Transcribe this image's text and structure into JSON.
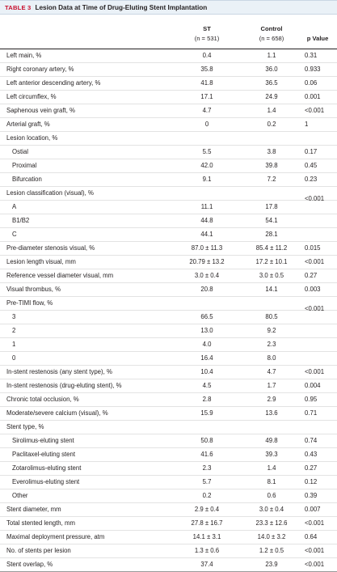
{
  "table": {
    "label": "TABLE 3",
    "title": "Lesion Data at Time of Drug-Eluting Stent Implantation",
    "columns": {
      "st_name": "ST",
      "st_n": "(n = 531)",
      "control_name": "Control",
      "control_n": "(n = 658)",
      "p_name": "p Value"
    },
    "rows": [
      {
        "label": "Left main, %",
        "st": "0.4",
        "control": "1.1",
        "p": "0.31",
        "sub": false
      },
      {
        "label": "Right coronary artery, %",
        "st": "35.8",
        "control": "36.0",
        "p": "0.933",
        "sub": false
      },
      {
        "label": "Left anterior descending artery, %",
        "st": "41.8",
        "control": "36.5",
        "p": "0.06",
        "sub": false
      },
      {
        "label": "Left circumflex, %",
        "st": "17.1",
        "control": "24.9",
        "p": "0.001",
        "sub": false
      },
      {
        "label": "Saphenous vein graft, %",
        "st": "4.7",
        "control": "1.4",
        "p": "<0.001",
        "sub": false
      },
      {
        "label": "Arterial graft, %",
        "st": "0",
        "control": "0.2",
        "p": "1",
        "sub": false
      },
      {
        "label": "Lesion location, %",
        "st": "",
        "control": "",
        "p": "",
        "sub": false
      },
      {
        "label": "Ostial",
        "st": "5.5",
        "control": "3.8",
        "p": "0.17",
        "sub": true
      },
      {
        "label": "Proximal",
        "st": "42.0",
        "control": "39.8",
        "p": "0.45",
        "sub": true
      },
      {
        "label": "Bifurcation",
        "st": "9.1",
        "control": "7.2",
        "p": "0.23",
        "sub": true
      },
      {
        "label": "Lesion classification (visual), %",
        "st": "",
        "control": "",
        "p": "<0.001",
        "sub": false,
        "pshift": true
      },
      {
        "label": "A",
        "st": "11.1",
        "control": "17.8",
        "p": "",
        "sub": true
      },
      {
        "label": "B1/B2",
        "st": "44.8",
        "control": "54.1",
        "p": "",
        "sub": true
      },
      {
        "label": "C",
        "st": "44.1",
        "control": "28.1",
        "p": "",
        "sub": true
      },
      {
        "label": "Pre-diameter stenosis visual, %",
        "st": "87.0 ± 11.3",
        "control": "85.4 ± 11.2",
        "p": "0.015",
        "sub": false
      },
      {
        "label": "Lesion length visual, mm",
        "st": "20.79 ± 13.2",
        "control": "17.2 ± 10.1",
        "p": "<0.001",
        "sub": false
      },
      {
        "label": "Reference vessel diameter visual, mm",
        "st": "3.0 ± 0.4",
        "control": "3.0 ± 0.5",
        "p": "0.27",
        "sub": false
      },
      {
        "label": "Visual thrombus, %",
        "st": "20.8",
        "control": "14.1",
        "p": "0.003",
        "sub": false
      },
      {
        "label": "Pre-TIMI flow, %",
        "st": "",
        "control": "",
        "p": "<0.001",
        "sub": false,
        "pshift": true
      },
      {
        "label": "3",
        "st": "66.5",
        "control": "80.5",
        "p": "",
        "sub": true
      },
      {
        "label": "2",
        "st": "13.0",
        "control": "9.2",
        "p": "",
        "sub": true
      },
      {
        "label": "1",
        "st": "4.0",
        "control": "2.3",
        "p": "",
        "sub": true
      },
      {
        "label": "0",
        "st": "16.4",
        "control": "8.0",
        "p": "",
        "sub": true
      },
      {
        "label": "In-stent restenosis (any stent type), %",
        "st": "10.4",
        "control": "4.7",
        "p": "<0.001",
        "sub": false
      },
      {
        "label": "In-stent restenosis (drug-eluting stent), %",
        "st": "4.5",
        "control": "1.7",
        "p": "0.004",
        "sub": false
      },
      {
        "label": "Chronic total occlusion, %",
        "st": "2.8",
        "control": "2.9",
        "p": "0.95",
        "sub": false
      },
      {
        "label": "Moderate/severe calcium (visual), %",
        "st": "15.9",
        "control": "13.6",
        "p": "0.71",
        "sub": false
      },
      {
        "label": "Stent type, %",
        "st": "",
        "control": "",
        "p": "",
        "sub": false
      },
      {
        "label": "Sirolimus-eluting stent",
        "st": "50.8",
        "control": "49.8",
        "p": "0.74",
        "sub": true
      },
      {
        "label": "Paclitaxel-eluting stent",
        "st": "41.6",
        "control": "39.3",
        "p": "0.43",
        "sub": true
      },
      {
        "label": "Zotarolimus-eluting stent",
        "st": "2.3",
        "control": "1.4",
        "p": "0.27",
        "sub": true
      },
      {
        "label": "Everolimus-eluting stent",
        "st": "5.7",
        "control": "8.1",
        "p": "0.12",
        "sub": true
      },
      {
        "label": "Other",
        "st": "0.2",
        "control": "0.6",
        "p": "0.39",
        "sub": true
      },
      {
        "label": "Stent diameter, mm",
        "st": "2.9 ± 0.4",
        "control": "3.0 ± 0.4",
        "p": "0.007",
        "sub": false
      },
      {
        "label": "Total stented length, mm",
        "st": "27.8 ± 16.7",
        "control": "23.3 ± 12.6",
        "p": "<0.001",
        "sub": false
      },
      {
        "label": "Maximal deployment pressure, atm",
        "st": "14.1 ± 3.1",
        "control": "14.0 ± 3.2",
        "p": "0.64",
        "sub": false
      },
      {
        "label": "No. of stents per lesion",
        "st": "1.3 ± 0.6",
        "control": "1.2 ± 0.5",
        "p": "<0.001",
        "sub": false
      },
      {
        "label": "Stent overlap, %",
        "st": "37.4",
        "control": "23.9",
        "p": "<0.001",
        "sub": false
      }
    ]
  },
  "colors": {
    "label_red": "#c8102e",
    "title_bar_bg": "#eaf1f7",
    "text": "#231f20"
  }
}
